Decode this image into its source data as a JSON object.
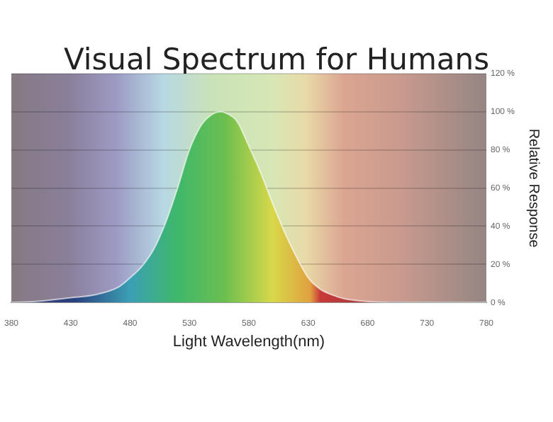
{
  "chart_data": {
    "type": "area",
    "title": "Visual Spectrum for Humans",
    "xlabel": "Light Wavelength(nm)",
    "ylabel": "Relative Response",
    "series": [
      {
        "color": "#6cbf4f",
        "x": [
          380,
          400,
          430,
          450,
          470,
          480,
          490,
          500,
          510,
          520,
          530,
          540,
          550,
          556,
          560,
          570,
          580,
          590,
          600,
          610,
          620,
          630,
          640,
          650,
          660,
          680,
          700,
          730,
          780
        ],
        "values": [
          0,
          0.5,
          2.5,
          4,
          8,
          13,
          19,
          28,
          42,
          60,
          80,
          93,
          99,
          100,
          99.5,
          95,
          82,
          68,
          52,
          37,
          24,
          13,
          7,
          4,
          2,
          0.5,
          0,
          0,
          0
        ]
      }
    ],
    "xlim": [
      380,
      780
    ],
    "xticks": [
      380,
      430,
      480,
      530,
      580,
      630,
      680,
      730,
      780
    ],
    "ylim": [
      0,
      120
    ],
    "yticks": [
      {
        "value": 0,
        "label": "0 %"
      },
      {
        "value": 20,
        "label": "20 %"
      },
      {
        "value": 40,
        "label": "40 %"
      },
      {
        "value": 60,
        "label": "60 %"
      },
      {
        "value": 80,
        "label": "80 %"
      },
      {
        "value": 100,
        "label": "100 %"
      },
      {
        "value": 120,
        "label": "120 %"
      }
    ],
    "grid": "y",
    "legend": false
  }
}
